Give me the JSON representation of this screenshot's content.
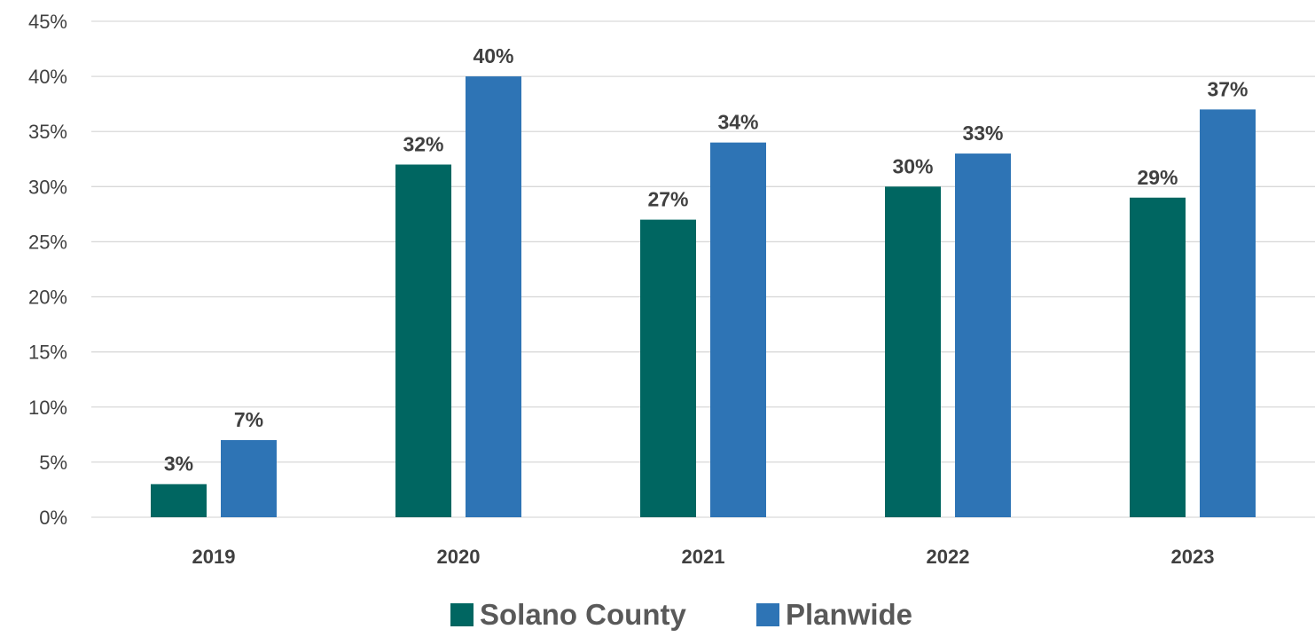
{
  "chart_data": {
    "type": "bar",
    "title": "",
    "xlabel": "",
    "ylabel": "",
    "categories": [
      "2019",
      "2020",
      "2021",
      "2022",
      "2023"
    ],
    "series": [
      {
        "name": "Solano County",
        "color": "#006661",
        "values": [
          3,
          32,
          27,
          30,
          29
        ],
        "labels": [
          "3%",
          "32%",
          "27%",
          "30%",
          "29%"
        ]
      },
      {
        "name": "Planwide",
        "color": "#2e74b5",
        "values": [
          7,
          40,
          34,
          33,
          37
        ],
        "labels": [
          "7%",
          "40%",
          "34%",
          "33%",
          "37%"
        ]
      }
    ],
    "ylim": [
      0,
      45
    ],
    "yticks": [
      0,
      5,
      10,
      15,
      20,
      25,
      30,
      35,
      40,
      45
    ],
    "ytick_labels": [
      "0%",
      "5%",
      "10%",
      "15%",
      "20%",
      "25%",
      "30%",
      "35%",
      "40%",
      "45%"
    ],
    "grid": true,
    "legend_position": "bottom"
  }
}
